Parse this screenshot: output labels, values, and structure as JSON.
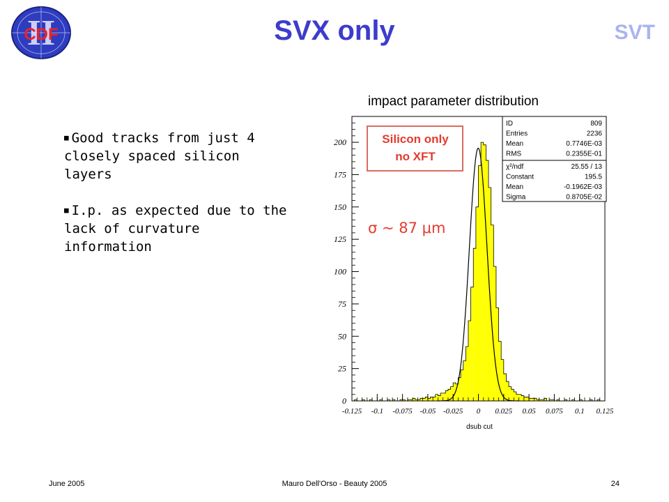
{
  "slide": {
    "title": "SVX only",
    "corner_label": "SVT",
    "logo_text": "CDF",
    "logo_numeral": "II",
    "bullets": [
      "Good tracks from just 4 closely spaced silicon layers",
      "I.p. as expected due to the lack of curvature information"
    ],
    "footer": {
      "left": "June 2005",
      "center": "Mauro Dell'Orso - Beauty 2005",
      "right": "24"
    }
  },
  "colors": {
    "title": "#3c3ccc",
    "svt": "#aab4ee",
    "histogram_fill": "#ffff00",
    "annotation_box_border": "#d96b5f",
    "annotation_text": "#e33b2e"
  },
  "chart_data": {
    "type": "histogram",
    "title": "impact parameter distribution",
    "xlabel": "dsub cut",
    "xlim": [
      -0.125,
      0.125
    ],
    "ylim": [
      0,
      220
    ],
    "x_tick_labels": [
      "-0.125",
      "-0.1",
      "-0.075",
      "-0.05",
      "-0.025",
      "0",
      "0.025",
      "0.05",
      "0.075",
      "0.1",
      "0.125"
    ],
    "y_tick_labels": [
      "0",
      "25",
      "50",
      "75",
      "100",
      "125",
      "150",
      "175",
      "200"
    ],
    "x_ticks": [
      -0.125,
      -0.1,
      -0.075,
      -0.05,
      -0.025,
      0,
      0.025,
      0.05,
      0.075,
      0.1,
      0.125
    ],
    "y_ticks": [
      0,
      25,
      50,
      75,
      100,
      125,
      150,
      175,
      200
    ],
    "bin_width": 0.0025,
    "bin_start": -0.125,
    "bin_counts": [
      0,
      1,
      0,
      0,
      1,
      0,
      0,
      1,
      0,
      0,
      0,
      1,
      0,
      0,
      1,
      0,
      1,
      0,
      0,
      1,
      1,
      0,
      1,
      1,
      2,
      1,
      1,
      2,
      2,
      3,
      2,
      3,
      3,
      5,
      4,
      6,
      6,
      8,
      9,
      11,
      14,
      13,
      18,
      24,
      31,
      42,
      62,
      88,
      118,
      150,
      182,
      200,
      198,
      186,
      165,
      136,
      104,
      72,
      46,
      32,
      21,
      15,
      11,
      9,
      7,
      5,
      5,
      4,
      3,
      3,
      2,
      2,
      2,
      1,
      1,
      1,
      2,
      0,
      1,
      1,
      0,
      1,
      0,
      0,
      1,
      0,
      0,
      1,
      0,
      0,
      1,
      0,
      0,
      0,
      1,
      0,
      0,
      1,
      0,
      0
    ],
    "fit": {
      "label": "Gaussian fit",
      "constant": 195.5,
      "mean": -0.0001962,
      "sigma": 0.008705
    },
    "stats_box": {
      "rows": [
        [
          "ID",
          "809"
        ],
        [
          "Entries",
          "2236"
        ],
        [
          "Mean",
          "0.7746E-03"
        ],
        [
          "RMS",
          "0.2355E-01"
        ],
        [
          "χ²/ndf",
          "25.55    /    13"
        ],
        [
          "Constant",
          "195.5"
        ],
        [
          "Mean",
          "-0.1962E-03"
        ],
        [
          "Sigma",
          "0.8705E-02"
        ]
      ]
    },
    "annotation_box": {
      "lines": [
        "Silicon only",
        "no XFT"
      ]
    },
    "sigma_label": "σ ~ 87 μm"
  }
}
